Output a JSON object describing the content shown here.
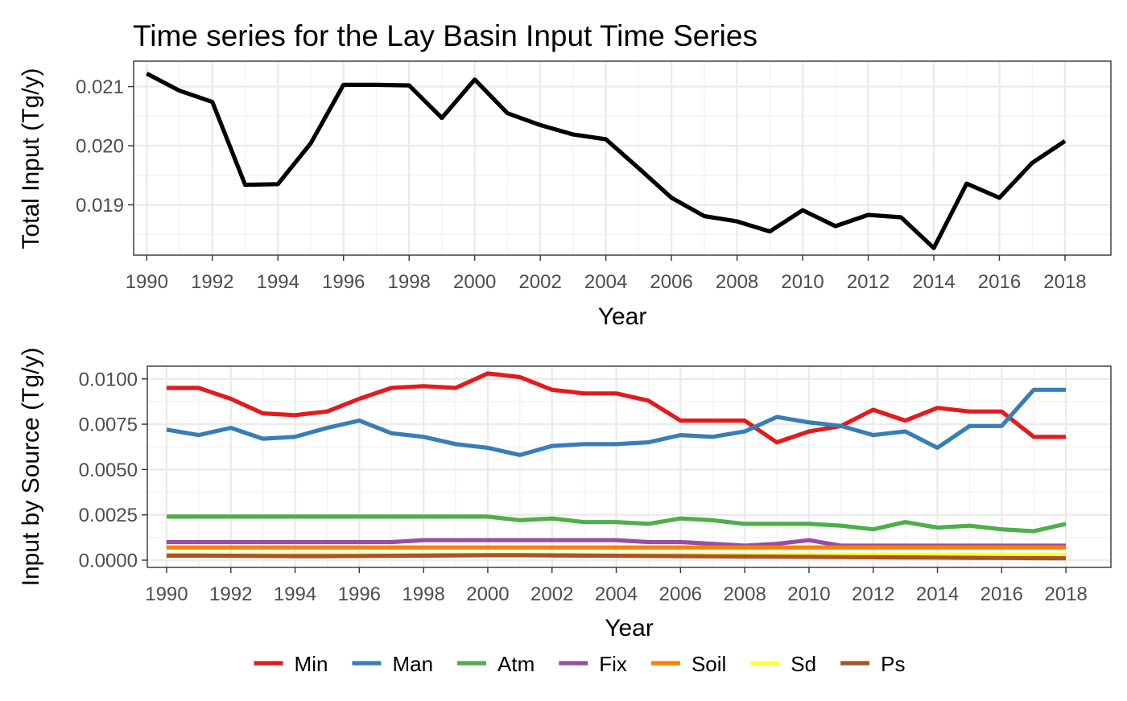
{
  "chart_data": [
    {
      "type": "line",
      "title": "Time series for the Lay Basin Input Time Series",
      "xlabel": "Year",
      "ylabel": "Total Input (Tg/y)",
      "x": [
        1990,
        1991,
        1992,
        1993,
        1994,
        1995,
        1996,
        1997,
        1998,
        1999,
        2000,
        2001,
        2002,
        2003,
        2004,
        2005,
        2006,
        2007,
        2008,
        2009,
        2010,
        2011,
        2012,
        2013,
        2014,
        2015,
        2016,
        2017,
        2018
      ],
      "x_ticks": [
        "1990",
        "1992",
        "1994",
        "1996",
        "1998",
        "2000",
        "2002",
        "2004",
        "2006",
        "2008",
        "2010",
        "2012",
        "2014",
        "2016",
        "2018"
      ],
      "y_ticks": [
        "0.019",
        "0.020",
        "0.021"
      ],
      "xlim": [
        1989.6,
        2019.4
      ],
      "ylim": [
        0.01815,
        0.02143
      ],
      "grid": true,
      "series": [
        {
          "values": [
            0.02122,
            0.02093,
            0.02074,
            0.01934,
            0.01935,
            0.02004,
            0.02103,
            0.02103,
            0.02102,
            0.02047,
            0.02112,
            0.02055,
            0.02035,
            0.02019,
            0.02011,
            0.01962,
            0.01912,
            0.01881,
            0.01872,
            0.01855,
            0.01891,
            0.01864,
            0.01883,
            0.01879,
            0.01827,
            0.01936,
            0.01912,
            0.01971,
            0.02008
          ],
          "color": "#000000"
        }
      ]
    },
    {
      "type": "line",
      "xlabel": "Year",
      "ylabel": "Input by Source (Tg/y)",
      "x": [
        1990,
        1991,
        1992,
        1993,
        1994,
        1995,
        1996,
        1997,
        1998,
        1999,
        2000,
        2001,
        2002,
        2003,
        2004,
        2005,
        2006,
        2007,
        2008,
        2009,
        2010,
        2011,
        2012,
        2013,
        2014,
        2015,
        2016,
        2017,
        2018
      ],
      "x_ticks": [
        "1990",
        "1992",
        "1994",
        "1996",
        "1998",
        "2000",
        "2002",
        "2004",
        "2006",
        "2008",
        "2010",
        "2012",
        "2014",
        "2016",
        "2018"
      ],
      "y_ticks": [
        "0.0000",
        "0.0025",
        "0.0050",
        "0.0075",
        "0.0100"
      ],
      "xlim": [
        1989.4,
        2019.4
      ],
      "ylim": [
        -0.0004,
        0.0107
      ],
      "grid": true,
      "legend_position": "bottom",
      "series": [
        {
          "name": "Min",
          "color": "#E41A1C",
          "values": [
            0.0095,
            0.0095,
            0.0089,
            0.0081,
            0.008,
            0.0082,
            0.0089,
            0.0095,
            0.0096,
            0.0095,
            0.0103,
            0.0101,
            0.0094,
            0.0092,
            0.0092,
            0.0088,
            0.0077,
            0.0077,
            0.0077,
            0.0065,
            0.0071,
            0.0074,
            0.0083,
            0.0077,
            0.0084,
            0.0082,
            0.0082,
            0.0068,
            0.0068
          ]
        },
        {
          "name": "Man",
          "color": "#377EB8",
          "values": [
            0.0072,
            0.0069,
            0.0073,
            0.0067,
            0.0068,
            0.0073,
            0.0077,
            0.007,
            0.0068,
            0.0064,
            0.0062,
            0.0058,
            0.0063,
            0.0064,
            0.0064,
            0.0065,
            0.0069,
            0.0068,
            0.0071,
            0.0079,
            0.0076,
            0.0074,
            0.0069,
            0.0071,
            0.0062,
            0.0074,
            0.0074,
            0.0094,
            0.0094
          ]
        },
        {
          "name": "Atm",
          "color": "#4DAF4A",
          "values": [
            0.0024,
            0.0024,
            0.0024,
            0.0024,
            0.0024,
            0.0024,
            0.0024,
            0.0024,
            0.0024,
            0.0024,
            0.0024,
            0.0022,
            0.0023,
            0.0021,
            0.0021,
            0.002,
            0.0023,
            0.0022,
            0.002,
            0.002,
            0.002,
            0.0019,
            0.0017,
            0.0021,
            0.0018,
            0.0019,
            0.0017,
            0.0016,
            0.002
          ]
        },
        {
          "name": "Fix",
          "color": "#984EA3",
          "values": [
            0.001,
            0.001,
            0.001,
            0.001,
            0.001,
            0.001,
            0.001,
            0.001,
            0.0011,
            0.0011,
            0.0011,
            0.0011,
            0.0011,
            0.0011,
            0.0011,
            0.001,
            0.001,
            0.0009,
            0.0008,
            0.0009,
            0.0011,
            0.0008,
            0.0008,
            0.0008,
            0.0008,
            0.0008,
            0.0008,
            0.0008,
            0.0008
          ]
        },
        {
          "name": "Soil",
          "color": "#FF7F00",
          "values": [
            0.0007,
            0.0007,
            0.0007,
            0.0007,
            0.0007,
            0.0007,
            0.0007,
            0.0007,
            0.0007,
            0.0007,
            0.0007,
            0.0007,
            0.0007,
            0.0007,
            0.0007,
            0.0007,
            0.0007,
            0.0007,
            0.0007,
            0.0007,
            0.0007,
            0.0007,
            0.0007,
            0.0007,
            0.0007,
            0.0007,
            0.0007,
            0.0007,
            0.0007
          ]
        },
        {
          "name": "Sd",
          "color": "#FFFF33",
          "values": [
            0.0003,
            0.0003,
            0.0003,
            0.0003,
            0.0003,
            0.0003,
            0.0003,
            0.0003,
            0.0003,
            0.0003,
            0.0003,
            0.0003,
            0.0003,
            0.0003,
            0.0003,
            0.0003,
            0.0003,
            0.0003,
            0.0003,
            0.0003,
            0.0003,
            0.0003,
            0.0003,
            0.0003,
            0.0003,
            0.0003,
            0.0003,
            0.0003,
            0.0003
          ]
        },
        {
          "name": "Ps",
          "color": "#A65628",
          "values": [
            0.00025,
            0.00025,
            0.00024,
            0.00023,
            0.00022,
            0.00022,
            0.00023,
            0.00024,
            0.00025,
            0.00026,
            0.00027,
            0.00027,
            0.00026,
            0.00025,
            0.00024,
            0.00023,
            0.00022,
            0.00021,
            0.0002,
            0.00019,
            0.00018,
            0.00017,
            0.00016,
            0.00015,
            0.00014,
            0.00013,
            0.00012,
            0.00011,
            0.0001
          ]
        }
      ]
    }
  ]
}
